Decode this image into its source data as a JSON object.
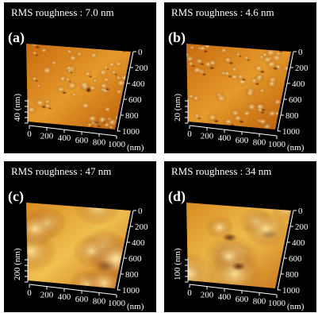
{
  "panels": [
    {
      "label": "(a)",
      "title": "RMS roughness : 7.0 nm",
      "z_label": "40 (nm)",
      "x_ticks": [
        0,
        200,
        400,
        600,
        800,
        1000
      ],
      "y_ticks": [
        0,
        200,
        400,
        600,
        800,
        1000
      ],
      "unit": "(nm)"
    },
    {
      "label": "(b)",
      "title": "RMS roughness : 4.6 nm",
      "z_label": "20 (nm)",
      "x_ticks": [
        0,
        200,
        400,
        600,
        800,
        1000
      ],
      "y_ticks": [
        0,
        200,
        400,
        600,
        800,
        1000
      ],
      "unit": "(nm)"
    },
    {
      "label": "(c)",
      "title": "RMS roughness : 47 nm",
      "z_label": "200 (nm)",
      "x_ticks": [
        0,
        200,
        400,
        600,
        800,
        1000
      ],
      "y_ticks": [
        0,
        200,
        400,
        600,
        800,
        1000
      ],
      "unit": "(nm)"
    },
    {
      "label": "(d)",
      "title": "RMS roughness : 34 nm",
      "z_label": "100 (nm)",
      "x_ticks": [
        0,
        200,
        400,
        600,
        800,
        1000
      ],
      "y_ticks": [
        0,
        200,
        400,
        600,
        800,
        1000
      ],
      "unit": "(nm)"
    }
  ]
}
